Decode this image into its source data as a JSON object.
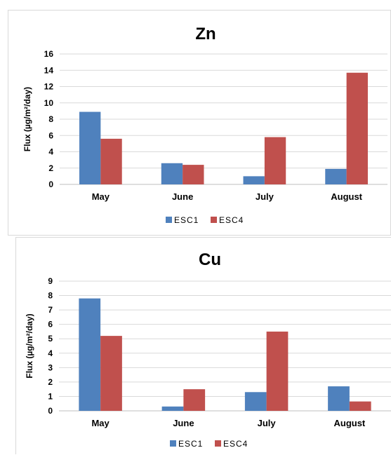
{
  "chart_data": [
    {
      "type": "bar",
      "title": "Zn",
      "ylabel": "Flux (µg/m²/day)",
      "xlabel": "",
      "categories": [
        "May",
        "June",
        "July",
        "August"
      ],
      "ylim": [
        0,
        16
      ],
      "yticks": [
        0,
        2,
        4,
        6,
        8,
        10,
        12,
        14,
        16
      ],
      "grid": true,
      "legend_position": "bottom",
      "series": [
        {
          "name": "ESC1",
          "color": "#4f81bd",
          "values": [
            8.9,
            2.6,
            1.0,
            1.9
          ]
        },
        {
          "name": "ESC4",
          "color": "#c0504d",
          "values": [
            5.6,
            2.4,
            5.8,
            13.7
          ]
        }
      ]
    },
    {
      "type": "bar",
      "title": "Cu",
      "ylabel": "Flux (µg/m²/day)",
      "xlabel": "",
      "categories": [
        "May",
        "June",
        "July",
        "August"
      ],
      "ylim": [
        0,
        9
      ],
      "yticks": [
        0,
        1,
        2,
        3,
        4,
        5,
        6,
        7,
        8,
        9
      ],
      "grid": true,
      "legend_position": "bottom",
      "series": [
        {
          "name": "ESC1",
          "color": "#4f81bd",
          "values": [
            7.8,
            0.3,
            1.3,
            1.7
          ]
        },
        {
          "name": "ESC4",
          "color": "#c0504d",
          "values": [
            5.2,
            1.5,
            5.5,
            0.65
          ]
        }
      ]
    }
  ]
}
